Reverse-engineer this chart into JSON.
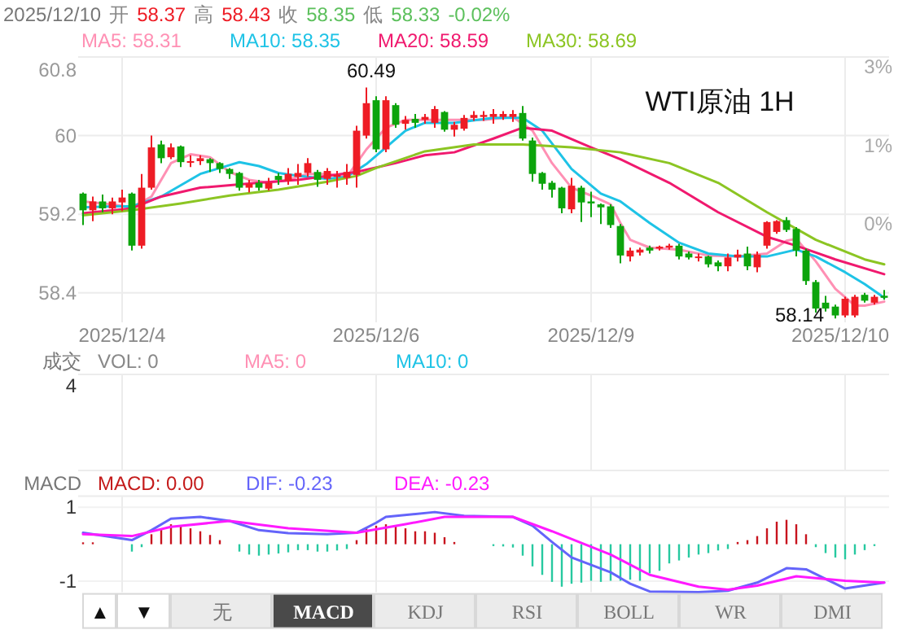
{
  "chart_data": [
    {
      "type": "candlestick",
      "title": "WTI原油 1H",
      "categories": [
        null,
        null,
        null,
        null,
        "2025/12/4",
        null,
        null,
        null,
        null,
        null,
        null,
        null,
        null,
        null,
        null,
        null,
        null,
        null,
        null,
        null,
        null,
        null,
        null,
        null,
        null,
        null,
        null,
        null,
        null,
        null,
        "2025/12/6",
        null,
        null,
        null,
        null,
        null,
        null,
        null,
        null,
        null,
        null,
        null,
        null,
        null,
        null,
        null,
        null,
        null,
        null,
        null,
        null,
        null,
        "2025/12/9",
        null,
        null,
        null,
        null,
        null,
        null,
        null,
        null,
        null,
        null,
        null,
        null,
        null,
        null,
        null,
        null,
        null,
        null,
        null,
        null,
        null,
        null,
        null,
        null,
        null,
        "2025/12/10",
        null,
        null,
        null,
        null
      ],
      "ohlc": [
        [
          59.41,
          59.42,
          59.09,
          59.24
        ],
        [
          59.24,
          59.38,
          59.13,
          59.33
        ],
        [
          59.33,
          59.4,
          59.22,
          59.26
        ],
        [
          59.26,
          59.37,
          59.2,
          59.33
        ],
        [
          59.32,
          59.45,
          59.23,
          59.37
        ],
        [
          59.41,
          59.42,
          58.83,
          58.88
        ],
        [
          58.88,
          59.61,
          58.85,
          59.47
        ],
        [
          59.47,
          60.0,
          59.45,
          59.88
        ],
        [
          59.91,
          59.95,
          59.72,
          59.77
        ],
        [
          59.78,
          59.92,
          59.76,
          59.88
        ],
        [
          59.89,
          59.9,
          59.68,
          59.73
        ],
        [
          59.73,
          59.8,
          59.68,
          59.74
        ],
        [
          59.74,
          59.8,
          59.7,
          59.77
        ],
        [
          59.76,
          59.77,
          59.63,
          59.72
        ],
        [
          59.72,
          59.73,
          59.62,
          59.66
        ],
        [
          59.66,
          59.67,
          59.56,
          59.61
        ],
        [
          59.62,
          59.63,
          59.44,
          59.47
        ],
        [
          59.47,
          59.55,
          59.42,
          59.51
        ],
        [
          59.52,
          59.55,
          59.44,
          59.47
        ],
        [
          59.46,
          59.57,
          59.44,
          59.52
        ],
        [
          59.59,
          59.62,
          59.5,
          59.55
        ],
        [
          59.54,
          59.67,
          59.5,
          59.61
        ],
        [
          59.58,
          59.71,
          59.5,
          59.62
        ],
        [
          59.62,
          59.77,
          59.58,
          59.72
        ],
        [
          59.63,
          59.65,
          59.48,
          59.55
        ],
        [
          59.56,
          59.67,
          59.5,
          59.64
        ],
        [
          59.58,
          59.64,
          59.47,
          59.6
        ],
        [
          59.57,
          59.71,
          59.5,
          59.63
        ],
        [
          59.6,
          60.1,
          59.47,
          60.05
        ],
        [
          60.0,
          60.49,
          59.97,
          60.33
        ],
        [
          60.36,
          60.4,
          59.83,
          59.86
        ],
        [
          59.86,
          60.4,
          59.83,
          60.36
        ],
        [
          60.31,
          60.33,
          60.08,
          60.11
        ],
        [
          60.12,
          60.2,
          60.06,
          60.16
        ],
        [
          60.17,
          60.22,
          60.08,
          60.13
        ],
        [
          60.16,
          60.22,
          60.12,
          60.19
        ],
        [
          60.13,
          60.3,
          60.08,
          60.27
        ],
        [
          60.24,
          60.25,
          60.04,
          60.06
        ],
        [
          60.06,
          60.14,
          59.99,
          60.11
        ],
        [
          60.07,
          60.21,
          60.05,
          60.18
        ],
        [
          60.18,
          60.25,
          60.15,
          60.21
        ],
        [
          60.19,
          60.25,
          60.15,
          60.21
        ],
        [
          60.19,
          60.27,
          60.12,
          60.22
        ],
        [
          60.19,
          60.25,
          60.16,
          60.22
        ],
        [
          60.19,
          60.26,
          60.14,
          60.22
        ],
        [
          60.23,
          60.3,
          59.95,
          59.97
        ],
        [
          59.95,
          59.98,
          59.53,
          59.61
        ],
        [
          59.62,
          59.63,
          59.45,
          59.51
        ],
        [
          59.52,
          59.54,
          59.37,
          59.45
        ],
        [
          59.47,
          59.48,
          59.21,
          59.26
        ],
        [
          59.25,
          59.57,
          59.21,
          59.49
        ],
        [
          59.47,
          59.49,
          59.12,
          59.32
        ],
        [
          59.33,
          59.43,
          59.17,
          59.31
        ],
        [
          59.3,
          59.31,
          59.1,
          59.27
        ],
        [
          59.28,
          59.3,
          59.06,
          59.09
        ],
        [
          59.08,
          59.1,
          58.7,
          58.78
        ],
        [
          58.77,
          58.86,
          58.72,
          58.83
        ],
        [
          58.81,
          58.86,
          58.78,
          58.84
        ],
        [
          58.86,
          58.88,
          58.8,
          58.83
        ],
        [
          58.85,
          58.88,
          58.83,
          58.87
        ],
        [
          58.86,
          58.9,
          58.84,
          58.88
        ],
        [
          58.88,
          58.9,
          58.74,
          58.77
        ],
        [
          58.8,
          58.82,
          58.74,
          58.76
        ],
        [
          58.76,
          58.8,
          58.72,
          58.77
        ],
        [
          58.77,
          58.78,
          58.66,
          58.69
        ],
        [
          58.71,
          58.73,
          58.62,
          58.67
        ],
        [
          58.67,
          58.8,
          58.62,
          58.76
        ],
        [
          58.76,
          58.84,
          58.72,
          58.79
        ],
        [
          58.8,
          58.87,
          58.63,
          58.67
        ],
        [
          58.66,
          58.82,
          58.61,
          58.79
        ],
        [
          58.88,
          59.13,
          58.85,
          59.12
        ],
        [
          59.02,
          59.14,
          59.0,
          59.13
        ],
        [
          59.14,
          59.17,
          59.02,
          59.04
        ],
        [
          59.05,
          59.07,
          58.77,
          58.83
        ],
        [
          58.83,
          58.85,
          58.48,
          58.52
        ],
        [
          58.51,
          58.53,
          58.2,
          58.24
        ],
        [
          58.3,
          58.37,
          58.21,
          58.24
        ],
        [
          58.26,
          58.28,
          58.14,
          58.17
        ],
        [
          58.17,
          58.36,
          58.15,
          58.34
        ],
        [
          58.17,
          58.38,
          58.15,
          58.36
        ],
        [
          58.38,
          58.4,
          58.3,
          58.32
        ],
        [
          58.3,
          58.38,
          58.28,
          58.36
        ],
        [
          58.37,
          58.43,
          58.33,
          58.35
        ]
      ],
      "series": [
        {
          "name": "MA5: 58.31",
          "type": "line",
          "color": "#ff90b4",
          "values": [
            59.33,
            null,
            null,
            59.3,
            null,
            59.27,
            null,
            59.38,
            null,
            59.72,
            null,
            59.81,
            null,
            59.78,
            null,
            59.63,
            null,
            59.55,
            null,
            59.52,
            null,
            59.55,
            null,
            59.61,
            null,
            59.61,
            null,
            59.58,
            null,
            59.86,
            null,
            60.08,
            null,
            60.16,
            null,
            60.16,
            null,
            null,
            60.16,
            null,
            null,
            60.16,
            null,
            null,
            60.19,
            null,
            60.05,
            null,
            59.72,
            null,
            59.47,
            null,
            59.39,
            null,
            59.3,
            59.11,
            58.94,
            null,
            58.86,
            null,
            null,
            58.84,
            null,
            null,
            58.78,
            null,
            null,
            58.77,
            null,
            null,
            58.8,
            null,
            58.93,
            58.95,
            null,
            58.72,
            null,
            58.44,
            null,
            58.27,
            58.27,
            null,
            58.31
          ]
        },
        {
          "name": "MA10: 58.35",
          "type": "line",
          "color": "#1ec3e6",
          "values": [
            59.27,
            null,
            null,
            59.28,
            null,
            59.28,
            null,
            null,
            59.38,
            null,
            null,
            null,
            59.61,
            null,
            null,
            59.7,
            59.73,
            null,
            59.69,
            null,
            59.62,
            null,
            59.59,
            null,
            null,
            59.56,
            null,
            59.58,
            null,
            59.71,
            null,
            59.88,
            null,
            60.05,
            null,
            60.13,
            null,
            null,
            60.13,
            null,
            null,
            null,
            60.18,
            null,
            null,
            60.18,
            null,
            60.05,
            null,
            null,
            59.66,
            null,
            null,
            59.41,
            null,
            59.33,
            null,
            null,
            59.11,
            null,
            null,
            58.91,
            null,
            null,
            58.8,
            null,
            null,
            58.77,
            null,
            null,
            58.77,
            null,
            null,
            58.84,
            null,
            58.77,
            null,
            null,
            58.61,
            null,
            58.49,
            null,
            58.35
          ]
        },
        {
          "name": "MA20: 58.59",
          "type": "line",
          "color": "#f0196e",
          "values": [
            59.21,
            null,
            null,
            null,
            null,
            59.26,
            null,
            null,
            59.38,
            null,
            null,
            null,
            59.47,
            null,
            null,
            null,
            null,
            null,
            59.52,
            null,
            null,
            null,
            59.55,
            null,
            null,
            null,
            null,
            null,
            59.63,
            null,
            null,
            null,
            59.72,
            null,
            null,
            59.8,
            null,
            null,
            59.83,
            null,
            null,
            null,
            59.97,
            null,
            null,
            60.08,
            null,
            null,
            60.05,
            null,
            null,
            null,
            59.88,
            null,
            null,
            59.76,
            null,
            null,
            null,
            null,
            59.52,
            null,
            null,
            null,
            null,
            59.22,
            null,
            null,
            null,
            null,
            58.97,
            null,
            null,
            58.88,
            null,
            null,
            null,
            58.74,
            null,
            null,
            null,
            null,
            58.59
          ]
        },
        {
          "name": "MA30: 58.69",
          "type": "line",
          "color": "#8cc523",
          "values": [
            59.19,
            null,
            null,
            null,
            null,
            59.24,
            null,
            null,
            null,
            null,
            59.31,
            null,
            null,
            null,
            null,
            59.39,
            null,
            null,
            null,
            null,
            59.45,
            null,
            null,
            null,
            null,
            59.53,
            null,
            null,
            59.59,
            null,
            59.67,
            null,
            null,
            null,
            null,
            59.84,
            null,
            null,
            null,
            null,
            59.91,
            null,
            null,
            null,
            null,
            59.91,
            null,
            null,
            null,
            null,
            59.88,
            null,
            null,
            null,
            null,
            59.83,
            null,
            null,
            null,
            null,
            59.72,
            null,
            null,
            null,
            null,
            59.52,
            null,
            null,
            null,
            null,
            59.22,
            null,
            null,
            null,
            null,
            58.94,
            null,
            null,
            null,
            null,
            58.74,
            null,
            58.69
          ]
        }
      ],
      "ylim": [
        58.1,
        60.8
      ],
      "yticks": [
        58.4,
        59.2,
        60,
        60.8
      ],
      "y2lim": [
        -1.858,
        2.703
      ],
      "y2ticks": [
        {
          "value": 0,
          "label": "0%"
        },
        {
          "value": 1.351,
          "label": "1%"
        },
        {
          "value": 2.703,
          "label": "3%"
        }
      ],
      "grid": true,
      "annotations": [
        "2025/12/10",
        "开",
        "58.37",
        "高",
        "58.43",
        "收",
        "58.35",
        "低",
        "58.33",
        "-0.02%",
        "58.14",
        {
          "text": "60.49",
          "y": 60.49
        }
      ]
    },
    {
      "type": "other",
      "ylabel": "成交",
      "annotations": [
        "VOL: 0",
        "MA5: 0",
        "MA10: 0",
        "4"
      ]
    },
    {
      "type": "bar",
      "categories": [
        null,
        null,
        null,
        null,
        null,
        null,
        null,
        null,
        null,
        null,
        null,
        null,
        null,
        null,
        null,
        null,
        null,
        null,
        null,
        null,
        null,
        null,
        null,
        null,
        null,
        null,
        null,
        null,
        null,
        null,
        null,
        null,
        null,
        null,
        null,
        null,
        null,
        null,
        null,
        null,
        null,
        null,
        null,
        null,
        null,
        null,
        null,
        null,
        null,
        null,
        null,
        null,
        null,
        null,
        null,
        null,
        null,
        null,
        null,
        null,
        null,
        null,
        null,
        null,
        null,
        null,
        null,
        null,
        null,
        null,
        null,
        null,
        null,
        null,
        null,
        null,
        null,
        null,
        null,
        null,
        null,
        null,
        null
      ],
      "ylabel": "MACD",
      "ylim": [
        -1.3,
        1.3
      ],
      "yticks": [
        -1,
        1
      ],
      "tick_labels": "y",
      "grid": true,
      "series": [
        {
          "name": "MACD: 0.00",
          "type": "bar",
          "values": [
            0.05,
            0.05,
            0,
            0,
            0,
            -0.2,
            -0.08,
            0.27,
            0.43,
            0.54,
            0.5,
            0.43,
            0.35,
            0.25,
            0.11,
            0,
            -0.2,
            -0.28,
            -0.31,
            -0.28,
            -0.25,
            -0.22,
            -0.16,
            -0.16,
            -0.2,
            -0.2,
            -0.17,
            -0.13,
            0.11,
            0.43,
            0.5,
            0.54,
            0.5,
            0.43,
            0.35,
            0.35,
            0.31,
            0.19,
            0.06,
            0,
            0,
            0,
            -0.05,
            -0.06,
            -0.09,
            -0.31,
            -0.6,
            -0.83,
            -1.02,
            -1.15,
            -1.07,
            -1.04,
            -0.99,
            -1.02,
            -0.99,
            -0.99,
            -0.96,
            -0.99,
            -0.79,
            -0.72,
            -0.52,
            -0.44,
            -0.36,
            -0.28,
            -0.24,
            -0.17,
            -0.13,
            0.06,
            0.11,
            0.22,
            0.43,
            0.61,
            0.66,
            0.54,
            0.27,
            -0.08,
            -0.24,
            -0.36,
            -0.41,
            -0.28,
            -0.16,
            -0.05,
            0
          ],
          "colors": [
            "#c8141e",
            "#c8141e",
            "#c8141e",
            "#c8141e",
            "#c8141e",
            "#27c9a0",
            "#27c9a0",
            "#c8141e",
            "#c8141e",
            "#c8141e",
            "#c8141e",
            "#c8141e",
            "#c8141e",
            "#c8141e",
            "#c8141e",
            "#c8141e",
            "#27c9a0",
            "#27c9a0",
            "#27c9a0",
            "#27c9a0",
            "#27c9a0",
            "#27c9a0",
            "#27c9a0",
            "#27c9a0",
            "#27c9a0",
            "#27c9a0",
            "#27c9a0",
            "#27c9a0",
            "#c8141e",
            "#c8141e",
            "#c8141e",
            "#c8141e",
            "#c8141e",
            "#c8141e",
            "#c8141e",
            "#c8141e",
            "#c8141e",
            "#c8141e",
            "#c8141e",
            "#c8141e",
            "#c8141e",
            "#c8141e",
            "#27c9a0",
            "#27c9a0",
            "#27c9a0",
            "#27c9a0",
            "#27c9a0",
            "#27c9a0",
            "#27c9a0",
            "#27c9a0",
            "#27c9a0",
            "#27c9a0",
            "#27c9a0",
            "#27c9a0",
            "#27c9a0",
            "#27c9a0",
            "#27c9a0",
            "#27c9a0",
            "#27c9a0",
            "#27c9a0",
            "#27c9a0",
            "#27c9a0",
            "#27c9a0",
            "#27c9a0",
            "#27c9a0",
            "#27c9a0",
            "#27c9a0",
            "#c8141e",
            "#c8141e",
            "#c8141e",
            "#c8141e",
            "#c8141e",
            "#c8141e",
            "#c8141e",
            "#c8141e",
            "#27c9a0",
            "#27c9a0",
            "#27c9a0",
            "#27c9a0",
            "#27c9a0",
            "#27c9a0",
            "#27c9a0",
            "#c8141e"
          ]
        },
        {
          "name": "DIF: -0.23",
          "type": "line",
          "color": "#6464fa",
          "values": [
            0.31,
            null,
            null,
            null,
            null,
            0.11,
            null,
            0.38,
            null,
            0.69,
            null,
            null,
            0.74,
            null,
            null,
            0.63,
            null,
            null,
            0.38,
            null,
            null,
            0.3,
            null,
            null,
            null,
            0.27,
            null,
            null,
            0.31,
            null,
            0.58,
            0.74,
            null,
            null,
            null,
            null,
            0.87,
            null,
            null,
            0.77,
            null,
            null,
            null,
            null,
            0.74,
            null,
            0.5,
            null,
            0.06,
            null,
            -0.36,
            null,
            null,
            null,
            -0.76,
            null,
            -1.07,
            null,
            -1.28,
            null,
            null,
            null,
            null,
            -1.3,
            null,
            null,
            -1.26,
            null,
            null,
            -1.04,
            null,
            null,
            -0.65,
            null,
            -0.68,
            null,
            null,
            -1.07,
            -1.2,
            null,
            null,
            null,
            -1.04
          ]
        },
        {
          "name": "DEA: -0.23",
          "type": "line",
          "color": "#ff1aff",
          "values": [
            0.27,
            null,
            null,
            null,
            null,
            0.22,
            null,
            null,
            null,
            0.47,
            null,
            null,
            null,
            null,
            null,
            0.63,
            null,
            null,
            null,
            null,
            null,
            0.43,
            null,
            null,
            null,
            null,
            null,
            null,
            0.31,
            null,
            null,
            null,
            null,
            0.54,
            null,
            null,
            null,
            0.74,
            null,
            null,
            null,
            null,
            null,
            null,
            0.74,
            null,
            null,
            null,
            0.35,
            null,
            null,
            null,
            null,
            null,
            -0.28,
            null,
            null,
            null,
            -0.83,
            null,
            null,
            null,
            null,
            -1.15,
            null,
            null,
            -1.23,
            null,
            null,
            -1.12,
            null,
            null,
            null,
            -0.87,
            null,
            null,
            null,
            null,
            -0.99,
            null,
            null,
            null,
            -1.04
          ]
        }
      ],
      "annotations": [
        "▲",
        "▼",
        "无",
        "MACD",
        "KDJ",
        "RSI",
        "BOLL",
        "WR",
        "DMI"
      ]
    }
  ]
}
